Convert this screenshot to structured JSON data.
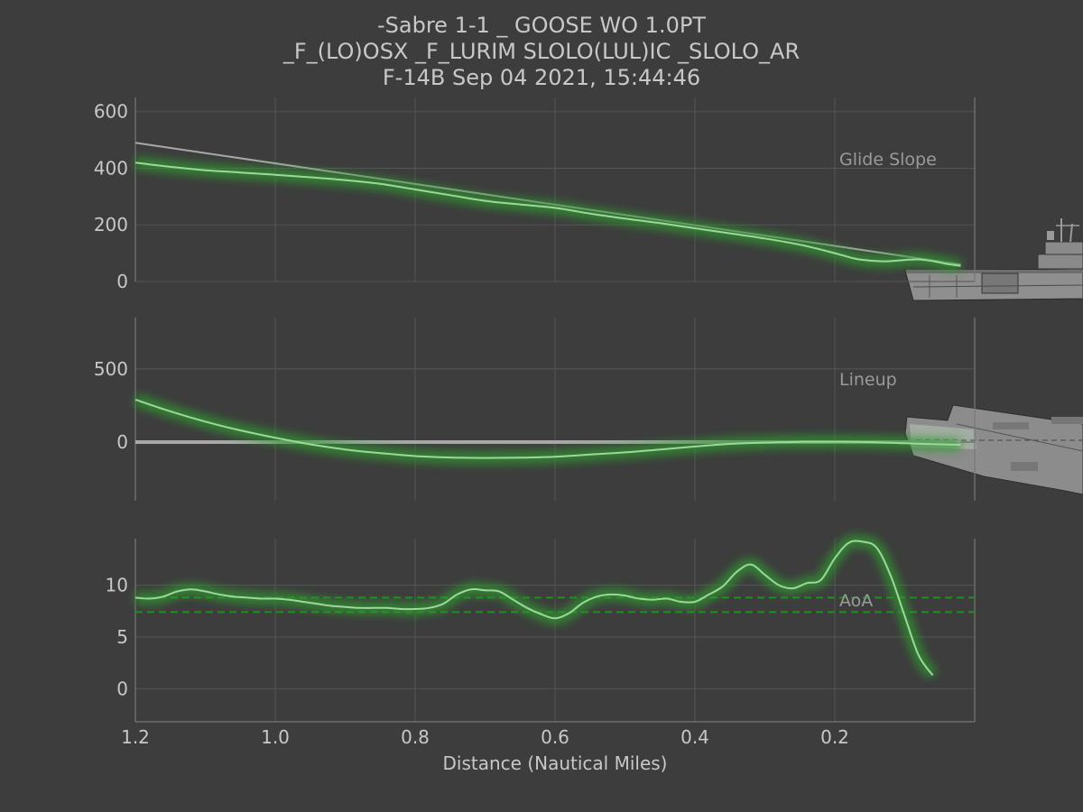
{
  "header": {
    "title_lines": [
      "-Sabre 1-1 _ GOOSE WO 1.0PT",
      "_F_(LO)OSX _F_LURIM  SLOLO(LUL)IC _SLOLO_AR",
      "F-14B Sep 04 2021, 15:44:46"
    ]
  },
  "colors": {
    "background": "#3d3d3d",
    "grid": "#555555",
    "axis": "#777777",
    "text": "#c8c8c8",
    "reference_line": "#a8a8a8",
    "flight_line": "#9ed69e",
    "glow": "#2f9a2f",
    "band_line": "#1f8f1f",
    "panel_label": "#9a9a9a",
    "ship": "#8a8a8a"
  },
  "icons": {
    "ship_side": "carrier-side-view-icon",
    "ship_top": "carrier-top-view-icon"
  },
  "chart_data": [
    {
      "type": "line",
      "label": "Glide Slope",
      "xlabel": "",
      "ylabel": "",
      "xlim": [
        1.2,
        0.0
      ],
      "ylim": [
        0,
        650
      ],
      "yticks": [
        "0",
        "200",
        "400",
        "600"
      ],
      "grid": true,
      "series": [
        {
          "role": "reference",
          "x": [
            1.2,
            0.02
          ],
          "y": [
            490,
            60
          ]
        },
        {
          "role": "flight",
          "x": [
            1.2,
            1.15,
            1.1,
            1.05,
            1.0,
            0.95,
            0.9,
            0.85,
            0.8,
            0.75,
            0.7,
            0.65,
            0.6,
            0.55,
            0.5,
            0.45,
            0.4,
            0.35,
            0.3,
            0.25,
            0.2,
            0.17,
            0.14,
            0.12,
            0.1,
            0.08,
            0.06,
            0.04,
            0.02
          ],
          "y": [
            420,
            405,
            393,
            385,
            377,
            368,
            358,
            345,
            325,
            305,
            285,
            272,
            260,
            240,
            222,
            206,
            188,
            170,
            152,
            130,
            100,
            80,
            72,
            72,
            76,
            78,
            72,
            62,
            55
          ]
        }
      ]
    },
    {
      "type": "line",
      "label": "Lineup",
      "xlabel": "",
      "ylabel": "",
      "xlim": [
        1.2,
        0.0
      ],
      "ylim": [
        -400,
        850
      ],
      "yticks": [
        "0",
        "500"
      ],
      "grid": true,
      "series": [
        {
          "role": "reference",
          "x": [
            1.2,
            0.02
          ],
          "y": [
            0,
            0
          ]
        },
        {
          "role": "flight",
          "x": [
            1.2,
            1.15,
            1.1,
            1.05,
            1.0,
            0.95,
            0.9,
            0.85,
            0.8,
            0.75,
            0.7,
            0.65,
            0.6,
            0.55,
            0.5,
            0.45,
            0.4,
            0.35,
            0.3,
            0.25,
            0.2,
            0.15,
            0.1,
            0.05,
            0.02
          ],
          "y": [
            290,
            210,
            140,
            80,
            30,
            -15,
            -50,
            -75,
            -95,
            -105,
            -108,
            -106,
            -100,
            -85,
            -70,
            -50,
            -30,
            -12,
            -3,
            2,
            3,
            0,
            -8,
            -15,
            -18
          ]
        }
      ]
    },
    {
      "type": "line",
      "label": "AoA",
      "xlabel": "Distance (Nautical Miles)",
      "ylabel": "",
      "xlim": [
        1.2,
        0.0
      ],
      "ylim": [
        -3.2,
        14.5
      ],
      "xticks": [
        "1.2",
        "1.0",
        "0.8",
        "0.6",
        "0.4",
        "0.2"
      ],
      "yticks": [
        "0",
        "5",
        "10"
      ],
      "grid": true,
      "bands": [
        7.4,
        8.8
      ],
      "series": [
        {
          "role": "flight",
          "x": [
            1.2,
            1.18,
            1.16,
            1.14,
            1.12,
            1.1,
            1.08,
            1.06,
            1.04,
            1.02,
            1.0,
            0.98,
            0.96,
            0.94,
            0.92,
            0.9,
            0.88,
            0.86,
            0.84,
            0.82,
            0.8,
            0.78,
            0.76,
            0.74,
            0.72,
            0.7,
            0.68,
            0.66,
            0.64,
            0.62,
            0.6,
            0.58,
            0.56,
            0.54,
            0.52,
            0.5,
            0.48,
            0.46,
            0.44,
            0.42,
            0.4,
            0.38,
            0.36,
            0.34,
            0.32,
            0.3,
            0.28,
            0.26,
            0.24,
            0.22,
            0.2,
            0.18,
            0.16,
            0.14,
            0.12,
            0.1,
            0.08,
            0.06
          ],
          "y": [
            8.8,
            8.7,
            8.9,
            9.4,
            9.6,
            9.4,
            9.1,
            8.9,
            8.8,
            8.7,
            8.7,
            8.6,
            8.4,
            8.2,
            8.0,
            7.9,
            7.8,
            7.8,
            7.8,
            7.7,
            7.7,
            7.8,
            8.2,
            9.1,
            9.6,
            9.5,
            9.4,
            8.6,
            7.8,
            7.2,
            6.8,
            7.3,
            8.3,
            8.9,
            9.1,
            9.0,
            8.7,
            8.6,
            8.7,
            8.4,
            8.4,
            9.1,
            9.9,
            11.3,
            12.0,
            11.0,
            10.0,
            9.7,
            10.2,
            10.5,
            12.6,
            14.1,
            14.2,
            13.6,
            10.9,
            7.0,
            3.2,
            1.3
          ]
        }
      ]
    }
  ]
}
